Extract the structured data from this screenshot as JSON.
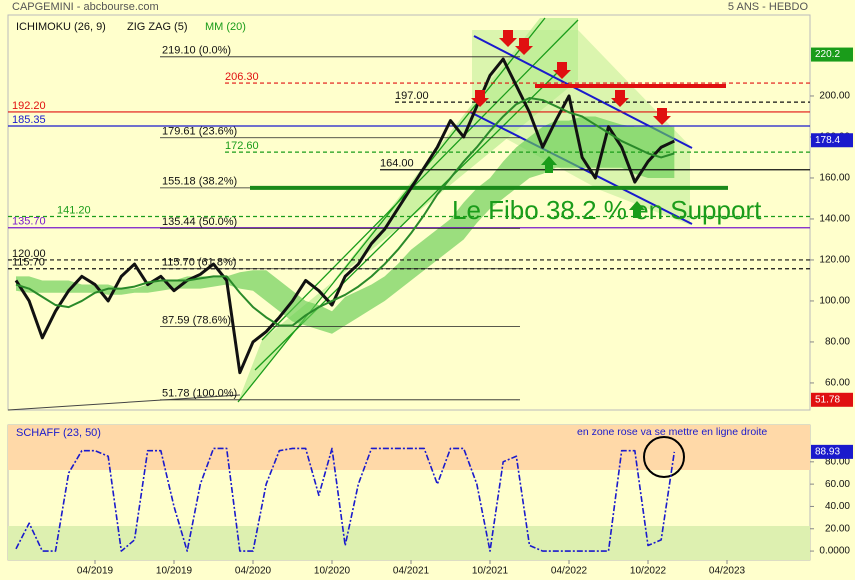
{
  "chart_data": [
    {
      "type": "line",
      "title": "CAPGEMINI - abcbourse.com",
      "subtitle": "5 ANS - HEBDO",
      "x": [
        "10/2018",
        "11/2018",
        "12/2018",
        "01/2019",
        "02/2019",
        "03/2019",
        "04/2019",
        "05/2019",
        "06/2019",
        "07/2019",
        "08/2019",
        "09/2019",
        "10/2019",
        "11/2019",
        "12/2019",
        "01/2020",
        "02/2020",
        "03/2020",
        "04/2020",
        "05/2020",
        "06/2020",
        "07/2020",
        "08/2020",
        "09/2020",
        "10/2020",
        "11/2020",
        "12/2020",
        "01/2021",
        "02/2021",
        "03/2021",
        "04/2021",
        "05/2021",
        "06/2021",
        "07/2021",
        "08/2021",
        "09/2021",
        "10/2021",
        "11/2021",
        "12/2021",
        "01/2022",
        "02/2022",
        "03/2022",
        "04/2022",
        "05/2022",
        "06/2022",
        "07/2022",
        "08/2022",
        "09/2022",
        "10/2022",
        "11/2022",
        "12/2022"
      ],
      "xlim": [
        "10/2018",
        "10/2023"
      ],
      "xticks": [
        "04/2019",
        "10/2019",
        "04/2020",
        "10/2020",
        "04/2021",
        "10/2021",
        "04/2022",
        "10/2022",
        "04/2023"
      ],
      "ylim": [
        46.8,
        239.5
      ],
      "yticks": [
        {
          "value": 60,
          "label": "60.00"
        },
        {
          "value": 80,
          "label": "80.00"
        },
        {
          "value": 100,
          "label": "100.00"
        },
        {
          "value": 120,
          "label": "120.00"
        },
        {
          "value": 140,
          "label": "140.00"
        },
        {
          "value": 160,
          "label": "160.00"
        },
        {
          "value": 180,
          "label": "180.00"
        },
        {
          "value": 200,
          "label": "200.00"
        }
      ],
      "cloud": {
        "name": "ICHIMOKU (26, 9)",
        "color": "#66cc55",
        "upper": [
          112,
          112,
          110,
          110,
          110,
          108,
          108,
          108,
          106,
          106,
          108,
          110,
          110,
          112,
          112,
          112,
          112,
          114,
          115,
          115,
          110,
          105,
          100,
          98,
          95,
          102,
          105,
          108,
          112,
          118,
          125,
          130,
          135,
          140,
          148,
          155,
          160,
          168,
          175,
          180,
          185,
          188,
          188,
          190,
          190,
          188,
          186,
          185,
          185,
          185,
          185
        ],
        "lower": [
          105,
          104,
          104,
          104,
          104,
          104,
          104,
          103,
          103,
          104,
          104,
          105,
          106,
          106,
          106,
          107,
          108,
          106,
          105,
          100,
          95,
          90,
          88,
          86,
          84,
          88,
          92,
          96,
          100,
          105,
          110,
          115,
          120,
          125,
          130,
          138,
          145,
          150,
          155,
          160,
          162,
          165,
          165,
          165,
          165,
          165,
          165,
          162,
          160,
          160,
          160
        ]
      },
      "series": [
        {
          "name": "ZIG ZAG (5)",
          "color": "#111111",
          "values": [
            110,
            100,
            82,
            95,
            105,
            112,
            108,
            100,
            112,
            118,
            108,
            112,
            105,
            110,
            113,
            118,
            110,
            65,
            80,
            85,
            92,
            100,
            110,
            105,
            98,
            112,
            118,
            128,
            135,
            145,
            155,
            165,
            175,
            188,
            180,
            195,
            210,
            218,
            205,
            192,
            175,
            188,
            200,
            170,
            160,
            185,
            175,
            158,
            168,
            175,
            178
          ]
        },
        {
          "name": "MM (20)",
          "color": "#2a8a2a",
          "values": [
            108,
            106,
            102,
            98,
            97,
            100,
            104,
            106,
            106,
            107,
            109,
            110,
            110,
            110,
            111,
            112,
            112,
            104,
            97,
            92,
            88,
            88,
            93,
            97,
            100,
            103,
            107,
            112,
            118,
            125,
            133,
            142,
            152,
            160,
            168,
            175,
            183,
            190,
            196,
            199,
            198,
            195,
            192,
            190,
            186,
            182,
            178,
            175,
            172,
            170,
            172
          ]
        }
      ],
      "fibo": [
        {
          "value": 219.1,
          "label": "219.10 (0.0%)"
        },
        {
          "value": 179.61,
          "label": "179.61 (23.6%)"
        },
        {
          "value": 155.18,
          "label": "155.18 (38.2%)"
        },
        {
          "value": 135.44,
          "label": "135.44 (50.0%)"
        },
        {
          "value": 115.7,
          "label": "115.70 (61.8%)"
        },
        {
          "value": 87.59,
          "label": "87.59 (78.6%)"
        },
        {
          "value": 51.78,
          "label": "51.78 (100.0%)"
        }
      ],
      "levels": [
        {
          "value": 206.3,
          "label": "206.30",
          "color": "#e01010",
          "style": "dashed"
        },
        {
          "value": 197,
          "label": "197.00",
          "color": "#111111",
          "style": "dashed"
        },
        {
          "value": 192.2,
          "label": "192.20",
          "color": "#e01010",
          "style": "solid"
        },
        {
          "value": 185.35,
          "label": "185.35",
          "color": "#1a1acc",
          "style": "solid"
        },
        {
          "value": 172.6,
          "label": "172.60",
          "color": "#1a9c1a",
          "style": "dashed"
        },
        {
          "value": 164,
          "label": "164.00",
          "color": "#111111",
          "style": "solid"
        },
        {
          "value": 141.2,
          "label": "141.20",
          "color": "#1a9c1a",
          "style": "dashed"
        },
        {
          "value": 135.7,
          "label": "135.70",
          "color": "#7a1acc",
          "style": "solid"
        },
        {
          "value": 120,
          "label": "120.00",
          "color": "#111111",
          "style": "dashed"
        },
        {
          "value": 115.7,
          "label": "115.70",
          "color": "#111111",
          "style": "dashed"
        }
      ],
      "markers": [
        {
          "value": 220.2,
          "color": "#1a9c1a"
        },
        {
          "value": 178.4,
          "color": "#1a1acc"
        },
        {
          "value": 51.78,
          "color": "#e01010"
        }
      ],
      "annotation": "Le Fibo 38.2 % en Support"
    },
    {
      "type": "line",
      "x": [
        "10/2018",
        "11/2018",
        "12/2018",
        "01/2019",
        "02/2019",
        "03/2019",
        "04/2019",
        "05/2019",
        "06/2019",
        "07/2019",
        "08/2019",
        "09/2019",
        "10/2019",
        "11/2019",
        "12/2019",
        "01/2020",
        "02/2020",
        "03/2020",
        "04/2020",
        "05/2020",
        "06/2020",
        "07/2020",
        "08/2020",
        "09/2020",
        "10/2020",
        "11/2020",
        "12/2020",
        "01/2021",
        "02/2021",
        "03/2021",
        "04/2021",
        "05/2021",
        "06/2021",
        "07/2021",
        "08/2021",
        "09/2021",
        "10/2021",
        "11/2021",
        "12/2021",
        "01/2022",
        "02/2022",
        "03/2022",
        "04/2022",
        "05/2022",
        "06/2022",
        "07/2022",
        "08/2022",
        "09/2022",
        "10/2022",
        "11/2022",
        "12/2022"
      ],
      "ylim": [
        -8,
        113
      ],
      "yticks": [
        {
          "value": 0,
          "label": "0.0000"
        },
        {
          "value": 20,
          "label": "20.00"
        },
        {
          "value": 40,
          "label": "40.00"
        },
        {
          "value": 60,
          "label": "60.00"
        },
        {
          "value": 80,
          "label": "80.00"
        }
      ],
      "series": [
        {
          "name": "SCHAFF (23, 50)",
          "color": "#1a1acc",
          "values": [
            2,
            25,
            0,
            0,
            70,
            90,
            90,
            85,
            0,
            10,
            90,
            90,
            40,
            0,
            60,
            92,
            92,
            0,
            0,
            60,
            90,
            92,
            92,
            50,
            92,
            5,
            60,
            92,
            92,
            92,
            92,
            92,
            60,
            92,
            92,
            60,
            0,
            80,
            85,
            5,
            0,
            0,
            0,
            0,
            0,
            0,
            90,
            90,
            5,
            10,
            88.93
          ]
        }
      ],
      "markers": [
        {
          "value": 88.93,
          "color": "#1a1acc"
        }
      ],
      "annotation": "en zone rose va se mettre en ligne droite"
    }
  ]
}
